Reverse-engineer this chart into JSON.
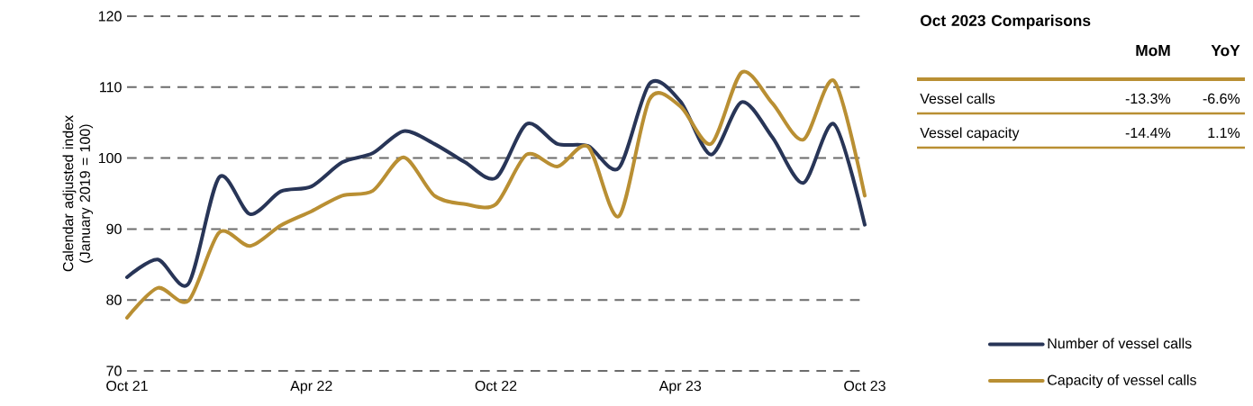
{
  "chart_data": [
    {
      "type": "line",
      "ylabel": "Calendar adjusted index (January 2019 = 100)",
      "x": [
        "2021-10",
        "2021-11",
        "2021-12",
        "2022-01",
        "2022-02",
        "2022-03",
        "2022-04",
        "2022-05",
        "2022-06",
        "2022-07",
        "2022-08",
        "2022-09",
        "2022-10",
        "2022-11",
        "2022-12",
        "2023-01",
        "2023-02",
        "2023-03",
        "2023-04",
        "2023-05",
        "2023-06",
        "2023-07",
        "2023-08",
        "2023-09",
        "2023-10"
      ],
      "series": [
        {
          "name": "Number of vessel calls",
          "color": "#283557",
          "values": [
            83.2,
            85.7,
            82.3,
            97.3,
            92.1,
            95.3,
            96.0,
            99.4,
            100.7,
            103.8,
            102.0,
            99.4,
            97.2,
            104.8,
            102.0,
            101.7,
            98.6,
            110.5,
            108.0,
            100.5,
            107.9,
            102.9,
            96.5,
            104.8,
            90.6
          ]
        },
        {
          "name": "Capacity of vessel calls",
          "color": "#b98f33",
          "values": [
            77.5,
            81.7,
            79.9,
            89.5,
            87.6,
            90.5,
            92.5,
            94.7,
            95.4,
            100.1,
            94.7,
            93.5,
            93.5,
            100.5,
            98.8,
            101.6,
            91.8,
            108.3,
            107.3,
            102.0,
            112.1,
            107.7,
            102.6,
            110.9,
            94.7
          ]
        }
      ],
      "xlim": [
        "2021-10",
        "2023-10"
      ],
      "xticks": [
        {
          "value": "2021-10",
          "label": "Oct 21"
        },
        {
          "value": "2022-04",
          "label": "Apr 22"
        },
        {
          "value": "2022-10",
          "label": "Oct 22"
        },
        {
          "value": "2023-04",
          "label": "Apr 23"
        },
        {
          "value": "2023-10",
          "label": "Oct 23"
        }
      ],
      "ylim": [
        70,
        120
      ],
      "yticks": [
        70,
        80,
        90,
        100,
        110,
        120
      ],
      "grid": "y",
      "legend": "right",
      "line_style": "solid"
    },
    {
      "type": "other",
      "title": "Oct 2023 Comparisons",
      "categories": [
        "MoM",
        "YoY"
      ],
      "series": [
        {
          "name": "Vessel calls",
          "values": [
            -13.3,
            -6.6
          ],
          "value_labels": [
            "-13.3%",
            "-6.6%"
          ]
        },
        {
          "name": "Vessel capacity",
          "values": [
            -14.4,
            1.1
          ],
          "value_labels": [
            "-14.4%",
            "1.1%"
          ]
        }
      ]
    }
  ]
}
